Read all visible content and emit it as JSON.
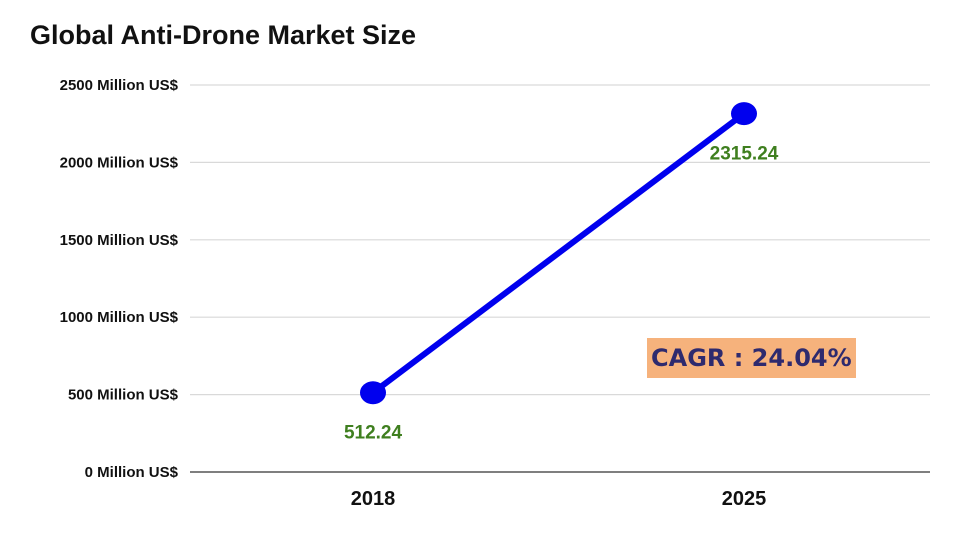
{
  "chart_data": {
    "type": "line",
    "title": "Global Anti-Drone Market Size",
    "categories": [
      "2018",
      "2025"
    ],
    "series": [
      {
        "values": [
          512.24,
          2315.24
        ],
        "labels": [
          "512.24",
          "2315.24"
        ]
      }
    ],
    "yticks": [
      {
        "value": 0,
        "label": "0 Million US$"
      },
      {
        "value": 500,
        "label": "500 Million US$"
      },
      {
        "value": 1000,
        "label": "1000 Million US$"
      },
      {
        "value": 1500,
        "label": "1500 Million US$"
      },
      {
        "value": 2000,
        "label": "2000 Million US$"
      },
      {
        "value": 2500,
        "label": "2500 Million US$"
      }
    ],
    "ylim": [
      0,
      2500
    ],
    "grid": true,
    "line_color": "#0000ee",
    "label_color": "#3f7f1f",
    "annotation": {
      "text": "CAGR : 24.04%",
      "background": "#f6b27c",
      "color": "#2e2a6e"
    }
  }
}
